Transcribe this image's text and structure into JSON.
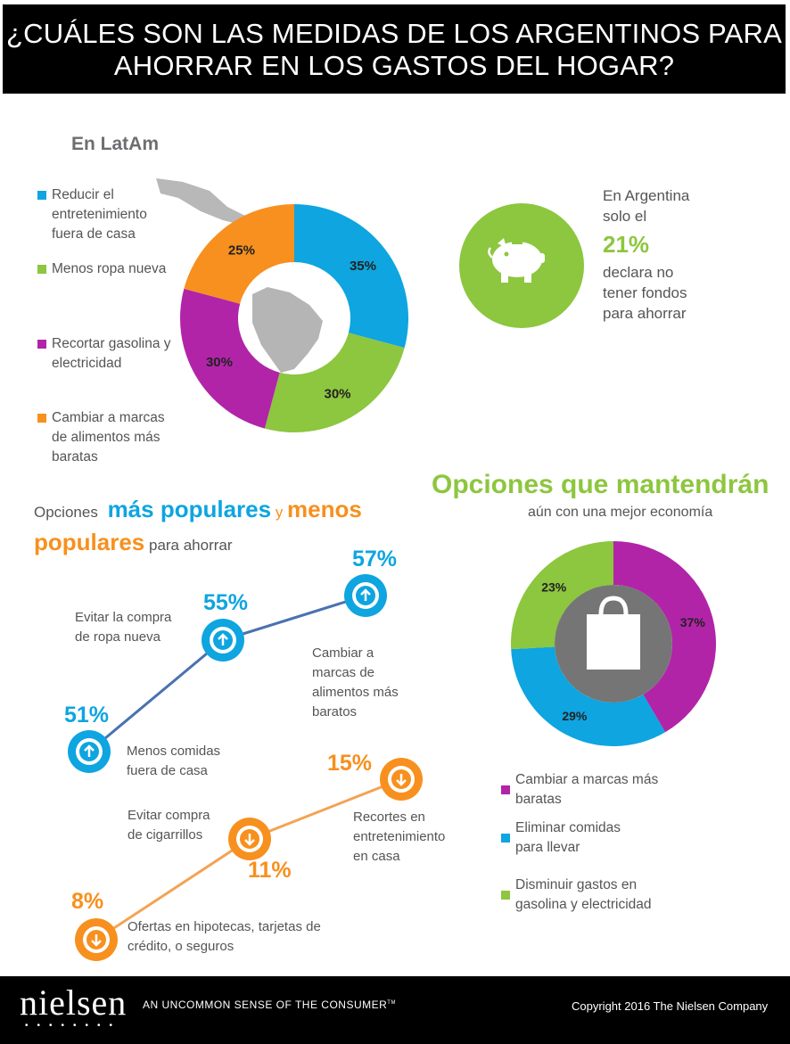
{
  "header": {
    "title_line1": "¿CUÁLES SON LAS MEDIDAS DE LOS ARGENTINOS PARA",
    "title_line2": "AHORRAR EN LOS GASTOS DEL HOGAR?"
  },
  "latam": {
    "heading": "En LatAm",
    "legend": [
      {
        "lines": [
          "Reducir el",
          "entretenimiento",
          "fuera de casa"
        ],
        "color": "#0ea5e0"
      },
      {
        "lines": [
          "Menos ropa nueva"
        ],
        "color": "#8dc63f"
      },
      {
        "lines": [
          "Recortar gasolina y",
          "electricidad"
        ],
        "color": "#b124a8"
      },
      {
        "lines": [
          "Cambiar a marcas",
          "de alimentos más",
          "baratas"
        ],
        "color": "#f7901e"
      }
    ]
  },
  "argentina": {
    "line1": "En  Argentina",
    "line2": "solo el",
    "pct": "21%",
    "line3": "declara no",
    "line4": "tener fondos",
    "line5": "para ahorrar",
    "icon": "piggy-bank-icon"
  },
  "popular": {
    "w1": "Opciones",
    "w2": "más populares",
    "w3": "y",
    "w4": "menos",
    "w5": "populares",
    "w6": "para ahorrar"
  },
  "options": {
    "title": "Opciones que mantendrán",
    "subtitle": "aún con una mejor economía",
    "icon": "shopping-bag-icon",
    "legend": [
      {
        "lines": [
          "Cambiar a marcas más",
          "baratas"
        ],
        "color": "#b124a8"
      },
      {
        "lines": [
          "Eliminar comidas",
          "para llevar"
        ],
        "color": "#0ea5e0"
      },
      {
        "lines": [
          "Disminuir gastos en",
          "gasolina y electricidad"
        ],
        "color": "#8dc63f"
      }
    ]
  },
  "footer": {
    "logo": "nielsen",
    "tagline": "AN UNCOMMON SENSE OF THE CONSUMER",
    "tm": "TM",
    "copyright": "Copyright 2016 The Nielsen Company"
  },
  "chart_data": [
    {
      "type": "pie",
      "title": "En LatAm",
      "categories": [
        "Reducir el entretenimiento fuera de casa",
        "Menos ropa nueva",
        "Recortar gasolina y electricidad",
        "Cambiar a marcas de alimentos más baratas"
      ],
      "values": [
        35,
        30,
        30,
        25
      ],
      "labels": [
        "35%",
        "30%",
        "30%",
        "25%"
      ],
      "colors": [
        "#0ea5e0",
        "#8dc63f",
        "#b124a8",
        "#f7901e"
      ]
    },
    {
      "type": "line",
      "series": [
        {
          "name": "más populares",
          "color": "#0ea5e0",
          "points": [
            {
              "label": "Menos comidas fuera de casa",
              "value": 51,
              "text": "51%"
            },
            {
              "label": "Evitar la compra de ropa nueva",
              "value": 55,
              "text": "55%"
            },
            {
              "label": "Cambiar a marcas de alimentos más baratos",
              "value": 57,
              "text": "57%"
            }
          ]
        },
        {
          "name": "menos populares",
          "color": "#f7901e",
          "points": [
            {
              "label": "Ofertas en hipotecas, tarjetas de crédito, o seguros",
              "value": 8,
              "text": "8%"
            },
            {
              "label": "Evitar compra de cigarrillos",
              "value": 11,
              "text": "11%"
            },
            {
              "label": "Recortes en entretenimiento en casa",
              "value": 15,
              "text": "15%"
            }
          ]
        }
      ]
    },
    {
      "type": "pie",
      "title": "Opciones que mantendrán",
      "categories": [
        "Cambiar a marcas más baratas",
        "Eliminar comidas para llevar",
        "Disminuir gastos en gasolina y electricidad"
      ],
      "values": [
        37,
        29,
        23
      ],
      "labels": [
        "37%",
        "29%",
        "23%"
      ],
      "colors": [
        "#b124a8",
        "#0ea5e0",
        "#8dc63f"
      ]
    }
  ]
}
